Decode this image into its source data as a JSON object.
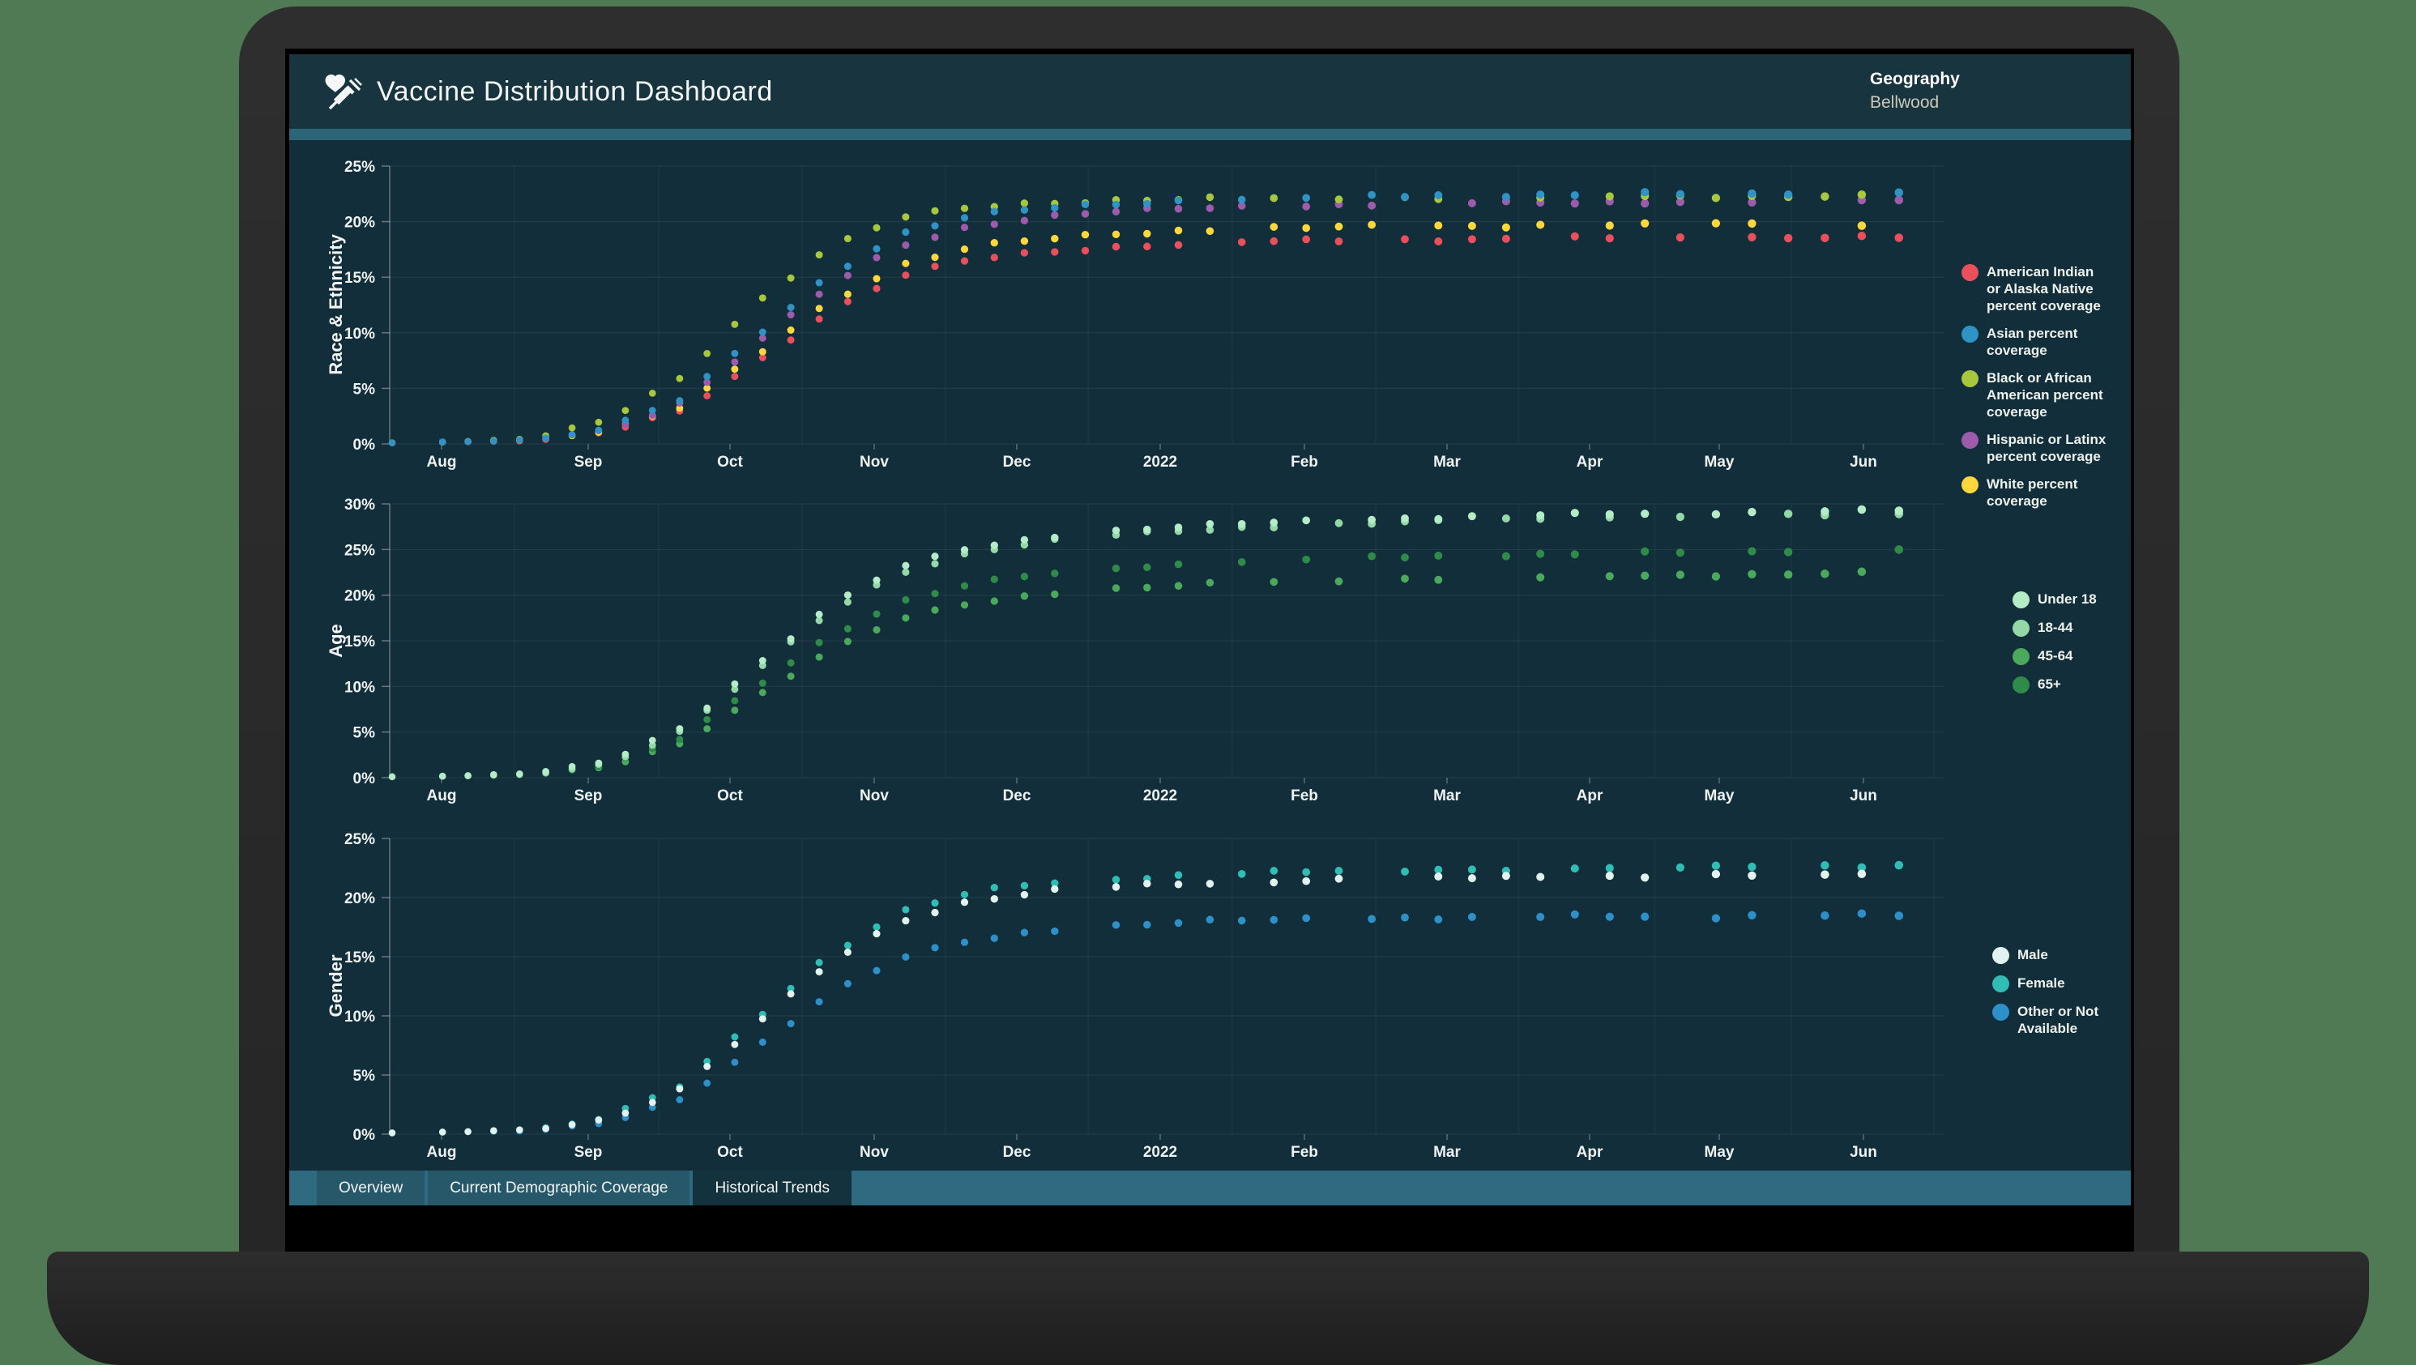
{
  "frame": {
    "backdrop_color": "#4f7a54",
    "bezel_color": "#2a2a2a",
    "screen_color": "#000000",
    "base_color": "#262626"
  },
  "header": {
    "title": "Vaccine Distribution Dashboard",
    "icon": "heart-syringe-icon",
    "background_color": "#17343f",
    "accent_strip_color": "#2c6478",
    "geography_label": "Geography",
    "geography_value": "Bellwood"
  },
  "tabs": [
    {
      "label": "Overview",
      "active": false
    },
    {
      "label": "Current Demographic Coverage",
      "active": false
    },
    {
      "label": "Historical Trends",
      "active": true
    }
  ],
  "chart_data": [
    {
      "type": "scatter",
      "ylabel": "Race & Ethnicity",
      "ylim": [
        0,
        25
      ],
      "yticks": [
        "0%",
        "5%",
        "10%",
        "15%",
        "20%",
        "25%"
      ],
      "x_categories": [
        "Aug",
        "Sep",
        "Oct",
        "Nov",
        "Dec",
        "2022",
        "Feb",
        "Mar",
        "Apr",
        "May",
        "Jun"
      ],
      "legend_position": "right",
      "grid": true,
      "sample_days": [
        0,
        15,
        30,
        45,
        60,
        75,
        90,
        105,
        120,
        135,
        150,
        165,
        180,
        195,
        210,
        225,
        240,
        255,
        270,
        285,
        300,
        315
      ],
      "series": [
        {
          "name": "American Indian or Alaska Native percent coverage",
          "color": "#ea4f5c",
          "z": 1,
          "values": [
            0.1,
            0.2,
            0.3,
            1.1,
            3.0,
            7.2,
            11.7,
            15.0,
            16.6,
            17.3,
            17.7,
            18.0,
            18.2,
            18.3,
            18.4,
            18.4,
            18.5,
            18.5,
            18.5,
            18.6,
            18.6,
            18.6
          ]
        },
        {
          "name": "Asian percent coverage",
          "color": "#3093c5",
          "z": 5,
          "values": [
            0.1,
            0.2,
            0.4,
            1.4,
            4.0,
            9.5,
            15.0,
            18.8,
            20.5,
            21.2,
            21.6,
            21.9,
            22.1,
            22.2,
            22.3,
            22.4,
            22.4,
            22.5,
            22.5,
            22.5,
            22.6,
            22.6
          ]
        },
        {
          "name": "Black or African American percent coverage",
          "color": "#a6c73e",
          "z": 4,
          "values": [
            0.1,
            0.2,
            0.5,
            2.2,
            6.0,
            12.5,
            17.5,
            20.3,
            21.3,
            21.7,
            21.9,
            22.0,
            22.1,
            22.1,
            22.2,
            22.2,
            22.2,
            22.3,
            22.3,
            22.3,
            22.3,
            22.3
          ]
        },
        {
          "name": "Hispanic or Latinx percent coverage",
          "color": "#9d5cab",
          "z": 3,
          "values": [
            0.1,
            0.2,
            0.4,
            1.3,
            3.7,
            8.8,
            14.0,
            17.8,
            19.6,
            20.4,
            20.9,
            21.2,
            21.4,
            21.5,
            21.6,
            21.7,
            21.7,
            21.8,
            21.8,
            21.8,
            21.9,
            21.9
          ]
        },
        {
          "name": "White percent coverage",
          "color": "#fdd73c",
          "z": 2,
          "values": [
            0.1,
            0.2,
            0.4,
            1.2,
            3.3,
            7.8,
            12.6,
            16.0,
            17.7,
            18.4,
            18.9,
            19.2,
            19.4,
            19.5,
            19.6,
            19.6,
            19.7,
            19.7,
            19.7,
            19.8,
            19.8,
            19.8
          ]
        }
      ]
    },
    {
      "type": "scatter",
      "ylabel": "Age",
      "ylim": [
        0,
        30
      ],
      "yticks": [
        "0%",
        "5%",
        "10%",
        "15%",
        "20%",
        "25%",
        "30%"
      ],
      "x_categories": [
        "Aug",
        "Sep",
        "Oct",
        "Nov",
        "Dec",
        "2022",
        "Feb",
        "Mar",
        "Apr",
        "May",
        "Jun"
      ],
      "legend_position": "right",
      "grid": true,
      "sample_days": [
        0,
        15,
        30,
        45,
        60,
        75,
        90,
        105,
        120,
        135,
        150,
        165,
        180,
        195,
        210,
        225,
        240,
        255,
        270,
        285,
        300,
        315
      ],
      "series": [
        {
          "name": "Under 18",
          "color": "#b4ecc8",
          "z": 4,
          "values": [
            0.1,
            0.2,
            0.5,
            1.8,
            5.5,
            12.0,
            18.5,
            23.0,
            25.2,
            26.3,
            27.0,
            27.5,
            27.9,
            28.2,
            28.4,
            28.6,
            28.8,
            28.9,
            29.0,
            29.1,
            29.2,
            29.3
          ]
        },
        {
          "name": "18-44",
          "color": "#93d8a6",
          "z": 3,
          "values": [
            0.1,
            0.2,
            0.4,
            1.6,
            5.1,
            11.4,
            17.9,
            22.4,
            24.7,
            25.9,
            26.6,
            27.1,
            27.5,
            27.8,
            28.0,
            28.2,
            28.4,
            28.5,
            28.6,
            28.7,
            28.8,
            28.9
          ]
        },
        {
          "name": "45-64",
          "color": "#4ba95c",
          "z": 1,
          "values": [
            0.1,
            0.2,
            0.4,
            1.2,
            3.8,
            8.7,
            13.7,
            17.3,
            19.1,
            20.1,
            20.7,
            21.1,
            21.4,
            21.6,
            21.8,
            21.9,
            22.0,
            22.1,
            22.2,
            22.3,
            22.4,
            22.5
          ]
        },
        {
          "name": "65+",
          "color": "#2f8b48",
          "z": 2,
          "values": [
            0.1,
            0.2,
            0.4,
            1.4,
            4.3,
            9.8,
            15.3,
            19.2,
            21.2,
            22.3,
            23.0,
            23.4,
            23.8,
            24.0,
            24.2,
            24.4,
            24.5,
            24.6,
            24.7,
            24.8,
            24.9,
            25.0
          ]
        }
      ]
    },
    {
      "type": "scatter",
      "ylabel": "Gender",
      "ylim": [
        0,
        25
      ],
      "yticks": [
        "0%",
        "5%",
        "10%",
        "15%",
        "20%",
        "25%"
      ],
      "x_categories": [
        "Aug",
        "Sep",
        "Oct",
        "Nov",
        "Dec",
        "2022",
        "Feb",
        "Mar",
        "Apr",
        "May",
        "Jun"
      ],
      "legend_position": "right",
      "grid": true,
      "sample_days": [
        0,
        15,
        30,
        45,
        60,
        75,
        90,
        105,
        120,
        135,
        150,
        165,
        180,
        195,
        210,
        225,
        240,
        255,
        270,
        285,
        300,
        315
      ],
      "series": [
        {
          "name": "Male",
          "color": "#e2f3ef",
          "z": 3,
          "values": [
            0.1,
            0.2,
            0.4,
            1.3,
            3.8,
            9.0,
            14.3,
            18.0,
            19.7,
            20.5,
            20.9,
            21.2,
            21.4,
            21.5,
            21.6,
            21.7,
            21.8,
            21.8,
            21.9,
            21.9,
            22.0,
            22.0
          ]
        },
        {
          "name": "Female",
          "color": "#2fbdb5",
          "z": 2,
          "values": [
            0.1,
            0.2,
            0.4,
            1.4,
            4.1,
            9.6,
            15.0,
            18.7,
            20.4,
            21.2,
            21.6,
            21.9,
            22.1,
            22.2,
            22.3,
            22.4,
            22.5,
            22.5,
            22.6,
            22.6,
            22.7,
            22.7
          ]
        },
        {
          "name": "Other or Not Available",
          "color": "#2d90c8",
          "z": 1,
          "values": [
            0.1,
            0.2,
            0.3,
            1.0,
            3.0,
            7.2,
            11.6,
            14.8,
            16.4,
            17.2,
            17.6,
            17.9,
            18.1,
            18.2,
            18.3,
            18.3,
            18.4,
            18.4,
            18.4,
            18.5,
            18.5,
            18.5
          ]
        }
      ]
    }
  ]
}
